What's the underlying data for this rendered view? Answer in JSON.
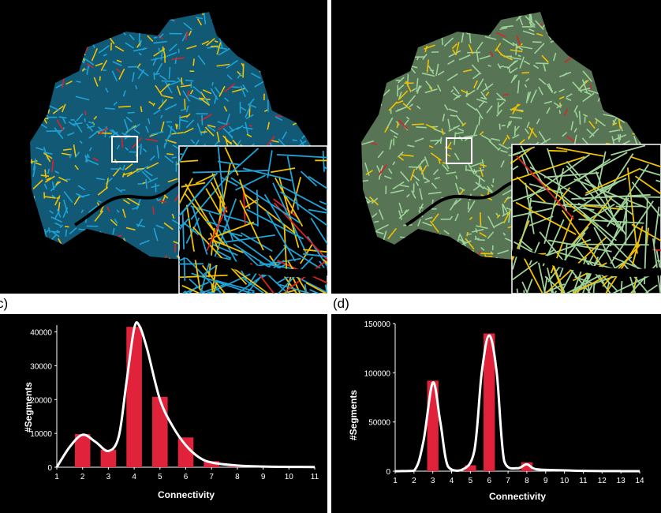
{
  "panel_labels": {
    "c": "c)",
    "d": "(d)"
  },
  "colors": {
    "bar": "#e0233b",
    "curve": "#ffffff",
    "background": "#000000",
    "map_left_base": "#1fa3d6",
    "map_right_base": "#9fd39a",
    "map_yellow": "#f2c200",
    "map_red": "#d8232a",
    "inset_frame": "#ffffff"
  },
  "chart_data": [
    {
      "type": "bar",
      "panel": "c",
      "xlabel": "Connectivity",
      "ylabel": "#Segments",
      "x_ticks": [
        "1",
        "2",
        "3",
        "4",
        "5",
        "6",
        "7",
        "8",
        "9",
        "10",
        "11"
      ],
      "y_ticks": [
        "0",
        "10000",
        "20000",
        "30000",
        "40000"
      ],
      "xlim": [
        1,
        11
      ],
      "ylim": [
        0,
        42000
      ],
      "bar_width": 0.6,
      "bars": [
        {
          "x": 2,
          "value": 9800
        },
        {
          "x": 3,
          "value": 5200
        },
        {
          "x": 4,
          "value": 41500
        },
        {
          "x": 5,
          "value": 20800
        },
        {
          "x": 6,
          "value": 8800
        },
        {
          "x": 7,
          "value": 1800
        },
        {
          "x": 8,
          "value": 400
        }
      ],
      "curve": [
        [
          1,
          0
        ],
        [
          1.5,
          6000
        ],
        [
          2,
          9600
        ],
        [
          2.5,
          7500
        ],
        [
          3,
          4800
        ],
        [
          3.4,
          9000
        ],
        [
          3.7,
          25000
        ],
        [
          4,
          41000
        ],
        [
          4.2,
          41800
        ],
        [
          4.5,
          35000
        ],
        [
          5,
          20000
        ],
        [
          5.5,
          12000
        ],
        [
          6,
          6500
        ],
        [
          6.5,
          3000
        ],
        [
          7,
          1400
        ],
        [
          8,
          500
        ],
        [
          9,
          200
        ],
        [
          10,
          100
        ],
        [
          11,
          50
        ]
      ],
      "grid": false,
      "legend": "none"
    },
    {
      "type": "bar",
      "panel": "d",
      "xlabel": "Connectivity",
      "ylabel": "#Segments",
      "x_ticks": [
        "1",
        "2",
        "3",
        "4",
        "5",
        "6",
        "7",
        "8",
        "9",
        "10",
        "11",
        "12",
        "13",
        "14"
      ],
      "y_ticks": [
        "0",
        "50000",
        "100000",
        "150000"
      ],
      "xlim": [
        1,
        14
      ],
      "ylim": [
        0,
        150000
      ],
      "bar_width": 0.6,
      "bars": [
        {
          "x": 3,
          "value": 92000
        },
        {
          "x": 5,
          "value": 6000
        },
        {
          "x": 6,
          "value": 140000
        },
        {
          "x": 8,
          "value": 9000
        }
      ],
      "curve": [
        [
          1,
          0
        ],
        [
          2,
          500
        ],
        [
          2.5,
          30000
        ],
        [
          3,
          90000
        ],
        [
          3.4,
          50000
        ],
        [
          3.8,
          5000
        ],
        [
          4.5,
          1000
        ],
        [
          5.2,
          20000
        ],
        [
          5.6,
          100000
        ],
        [
          6,
          138000
        ],
        [
          6.4,
          100000
        ],
        [
          6.8,
          10000
        ],
        [
          7.5,
          3000
        ],
        [
          8,
          7000
        ],
        [
          8.5,
          2000
        ],
        [
          10,
          800
        ],
        [
          11,
          300
        ],
        [
          12,
          100
        ],
        [
          13,
          50
        ],
        [
          14,
          30
        ]
      ],
      "grid": false,
      "legend": "none"
    }
  ]
}
